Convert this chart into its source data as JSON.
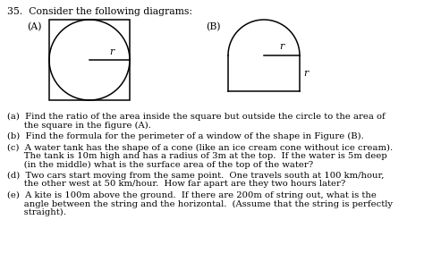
{
  "title_text": "35.  Consider the following diagrams:",
  "label_A": "(A)",
  "label_B": "(B)",
  "r_label": "r",
  "questions_a": "(a)  Find the ratio of the area inside the square but outside the circle to the area of",
  "questions_a2": "      the square in the figure (A).",
  "questions_b": "(b)  Find the formula for the perimeter of a window of the shape in Figure (B).",
  "questions_c": "(c)  A water tank has the shape of a cone (like an ice cream cone without ice cream).",
  "questions_c2": "      The tank is 10m high and has a radius of 3m at the top.  If the water is 5m deep",
  "questions_c3": "      (in the middle) what is the surface area of the top of the water?",
  "questions_d": "(d)  Two cars start moving from the same point.  One travels south at 100 km/hour,",
  "questions_d2": "      the other west at 50 km/hour.  How far apart are they two hours later?",
  "questions_e": "(e)  A kite is 100m above the ground.  If there are 200m of string out, what is the",
  "questions_e2": "      angle between the string and the horizontal.  (Assume that the string is perfectly",
  "questions_e3": "      straight).",
  "bg_color": "#ffffff",
  "line_color": "#000000",
  "text_color": "#000000",
  "font_size": 7.2,
  "title_font_size": 7.8,
  "label_font_size": 7.8
}
